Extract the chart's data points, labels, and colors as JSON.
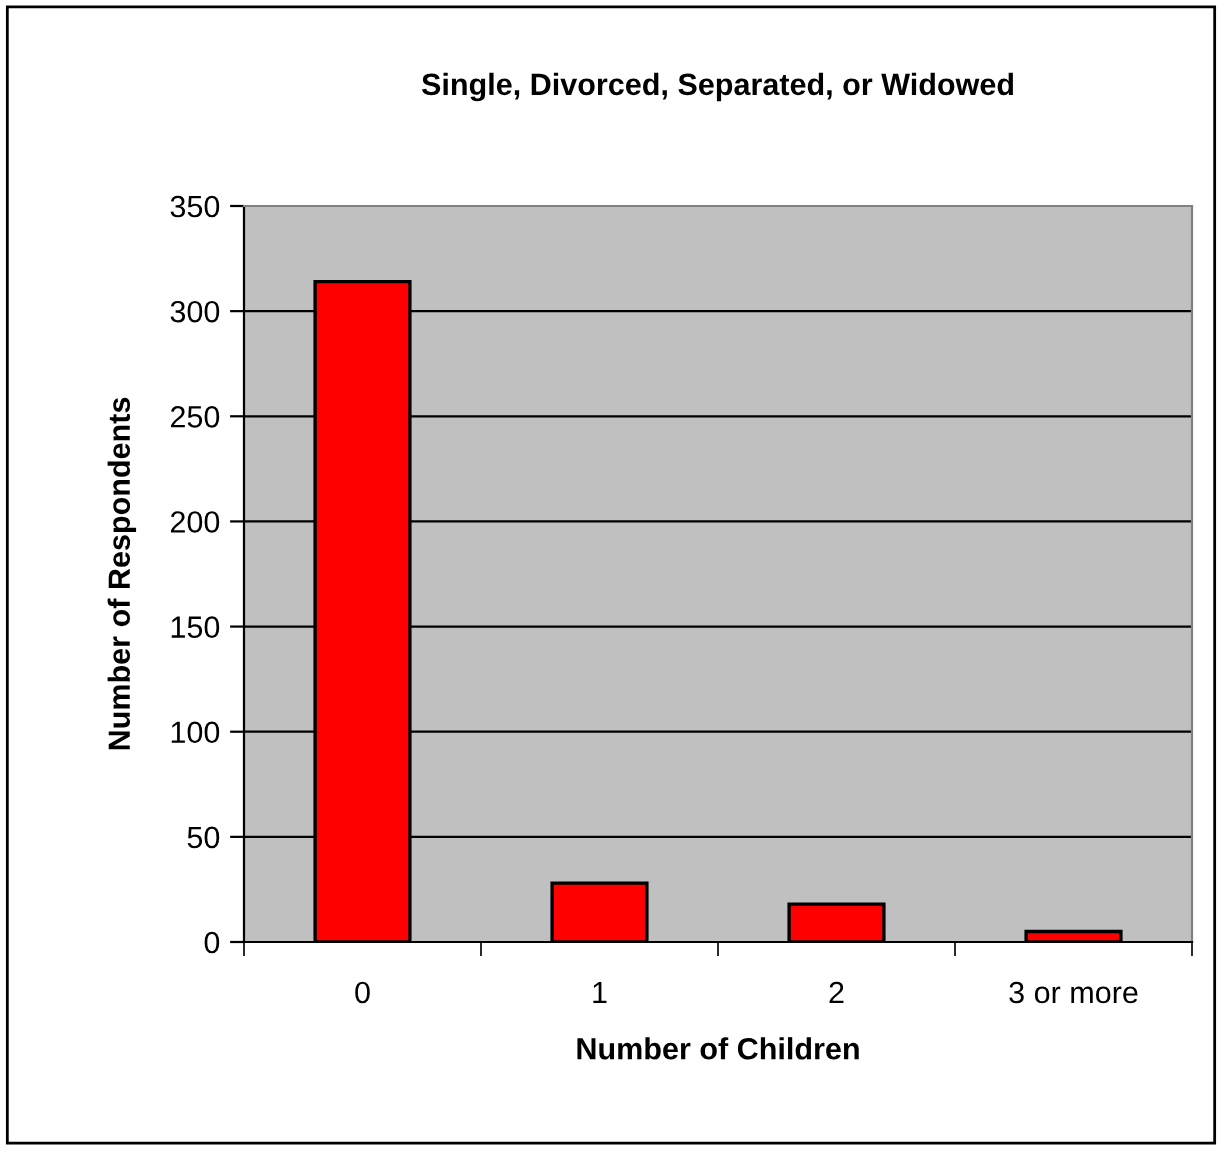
{
  "chart_data": {
    "type": "bar",
    "title": "Single, Divorced, Separated, or Widowed",
    "xlabel": "Number of Children",
    "ylabel": "Number of Respondents",
    "categories": [
      "0",
      "1",
      "2",
      "3 or more"
    ],
    "values": [
      314,
      28,
      18,
      5
    ],
    "color": "#ff0000",
    "ylim": [
      0,
      350
    ],
    "yticks": [
      0,
      50,
      100,
      150,
      200,
      250,
      300,
      350
    ],
    "grid": "y",
    "legend": false
  }
}
